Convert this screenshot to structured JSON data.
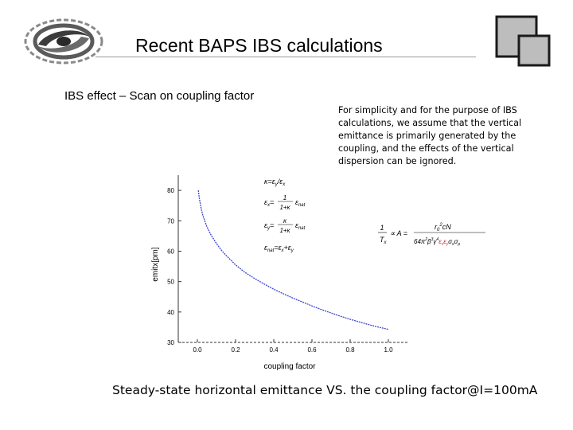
{
  "slide": {
    "title": "Recent BAPS IBS calculations",
    "subtitle": "IBS effect – Scan on coupling factor",
    "note": "For simplicity and for the purpose of IBS calculations, we assume that the vertical emittance is primarily generated by the coupling, and the effects of the vertical dispersion can be ignored.",
    "caption": "Steady-state horizontal emittance VS. the coupling factor@I=100mA",
    "logo_icon": "institute-logo-swirl-icon",
    "deco_icon": "overlapping-squares-icon"
  },
  "colors": {
    "curve": "#3a46c8",
    "axis": "#333333",
    "deco_fill": "#bdbdbd"
  },
  "chart_data": {
    "type": "line",
    "xlabel": "coupling factor",
    "ylabel": "emitx[pm]",
    "xlim": [
      -0.1,
      1.1
    ],
    "ylim": [
      30,
      85
    ],
    "xticks": [
      "0.0",
      "0.2",
      "0.4",
      "0.6",
      "0.8",
      "1.0"
    ],
    "yticks": [
      "30",
      "40",
      "50",
      "60",
      "70",
      "80"
    ],
    "series": [
      {
        "x": [
          0.005,
          0.01,
          0.02,
          0.03,
          0.05,
          0.07,
          0.1,
          0.13,
          0.16,
          0.2,
          0.25,
          0.3,
          0.35,
          0.4,
          0.45,
          0.5,
          0.55,
          0.6,
          0.65,
          0.7,
          0.75,
          0.8,
          0.85,
          0.9,
          0.95,
          1.0
        ],
        "y": [
          80,
          77.5,
          74,
          71.5,
          68,
          65.5,
          62.5,
          60,
          58,
          55.5,
          53,
          51,
          49.2,
          47.5,
          46,
          44.6,
          43.3,
          42,
          40.8,
          39.7,
          38.6,
          37.6,
          36.7,
          35.8,
          35,
          34.3
        ]
      }
    ]
  },
  "formulas": {
    "kappa": "κ=ε",
    "kappa_sub_num": "y",
    "kappa_slash": "/ε",
    "kappa_sub_den": "x",
    "ex_lhs": "ε",
    "ex_sub": "x",
    "ex_eq": "=",
    "ex_num": "1",
    "ex_den": "1+κ",
    "ex_tail": "ε",
    "ex_tail_sub": "nat",
    "ey_lhs": "ε",
    "ey_sub": "y",
    "ey_eq": "=",
    "ey_num": "κ",
    "ey_den": "1+κ",
    "ey_tail": "ε",
    "ey_tail_sub": "nat",
    "enat_lhs": "ε",
    "enat_sub": "nat",
    "enat_rhs": "=ε",
    "enat_rhs_sub": "x",
    "enat_plus": "+ε",
    "enat_plus_sub": "y",
    "rate_num": "1",
    "rate_den": "T",
    "rate_den_sub": "x",
    "rate_prop": "∝ A =",
    "rate_rhs_num": "r",
    "rate_rhs_num_sub": "0",
    "rate_rhs_num_sup": "2",
    "rate_rhs_num_tail": "cN",
    "rate_rhs_den_a": "64π",
    "rate_rhs_den_a_sup": "2",
    "rate_rhs_den_b": "β",
    "rate_rhs_den_b_sup": "3",
    "rate_rhs_den_c": "γ",
    "rate_rhs_den_c_sup": "4",
    "rate_rhs_den_red": "ε",
    "rate_rhs_den_red_sub": "x",
    "rate_rhs_den_red2": "ε",
    "rate_rhs_den_red2_sub": "y",
    "rate_rhs_den_tail": "σ",
    "rate_rhs_den_tail_sub": "s",
    "rate_rhs_den_tail2": "σ",
    "rate_rhs_den_tail2_sub": "p"
  }
}
